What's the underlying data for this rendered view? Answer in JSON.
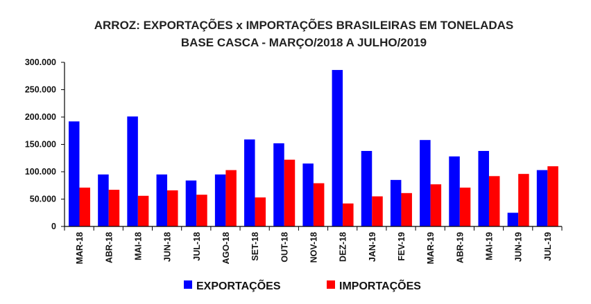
{
  "chart_data": {
    "type": "bar",
    "title": "ARROZ: EXPORTAÇÕES x IMPORTAÇÕES BRASILEIRAS EM TONELADAS",
    "subtitle": "BASE CASCA - MARÇO/2018 A JULHO/2019",
    "xlabel": "",
    "ylabel": "",
    "ylim": [
      0,
      300000
    ],
    "yticks": [
      0,
      50000,
      100000,
      150000,
      200000,
      250000,
      300000
    ],
    "ytick_labels": [
      "0",
      "50.000",
      "100.000",
      "150.000",
      "200.000",
      "250.000",
      "300.000"
    ],
    "categories": [
      "MAR-18",
      "ABR-18",
      "MAI-18",
      "JUN-18",
      "JUL-18",
      "AGO-18",
      "SET-18",
      "OUT-18",
      "NOV-18",
      "DEZ-18",
      "JAN-19",
      "FEV-19",
      "MAR-19",
      "ABR-19",
      "MAI-19",
      "JUN-19",
      "JUL-19"
    ],
    "series": [
      {
        "name": "EXPORTAÇÕES",
        "color": "#0000ff",
        "values": [
          192000,
          95000,
          201000,
          95000,
          84000,
          95000,
          159000,
          152000,
          115000,
          286000,
          138000,
          85000,
          158000,
          128000,
          138000,
          25000,
          103000
        ]
      },
      {
        "name": "IMPORTAÇÕES",
        "color": "#ff0000",
        "values": [
          71000,
          67000,
          56000,
          66000,
          58000,
          103000,
          53000,
          122000,
          79000,
          42000,
          55000,
          61000,
          77000,
          71000,
          92000,
          96000,
          110000
        ]
      }
    ],
    "grid": false,
    "legend": "bottom-center"
  }
}
